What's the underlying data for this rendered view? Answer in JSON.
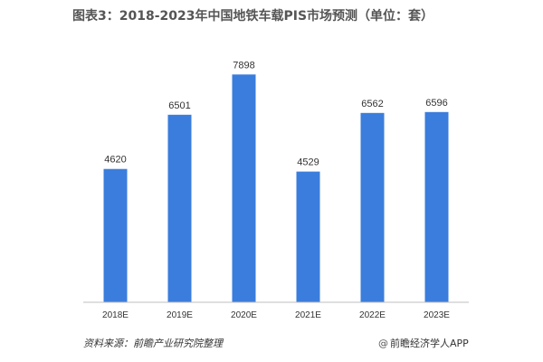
{
  "title": "图表3：2018-2023年中国地铁车载PIS市场预测（单位：套）",
  "footer": {
    "source": "资料来源：前瞻产业研究院整理",
    "brand_icon": "@",
    "brand": "前瞻经济学人APP"
  },
  "colors": {
    "bar": "#3a7ddc",
    "axis": "#bfbfbf",
    "label": "#333333"
  },
  "chart_data": {
    "type": "bar",
    "title": "图表3：2018-2023年中国地铁车载PIS市场预测（单位：套）",
    "categories": [
      "2018E",
      "2019E",
      "2020E",
      "2021E",
      "2022E",
      "2023E"
    ],
    "values": [
      4620,
      6501,
      7898,
      4529,
      6562,
      6596
    ],
    "xlabel": "",
    "ylabel": "",
    "ylim": [
      0,
      8000
    ],
    "grid": false,
    "legend": "none"
  }
}
